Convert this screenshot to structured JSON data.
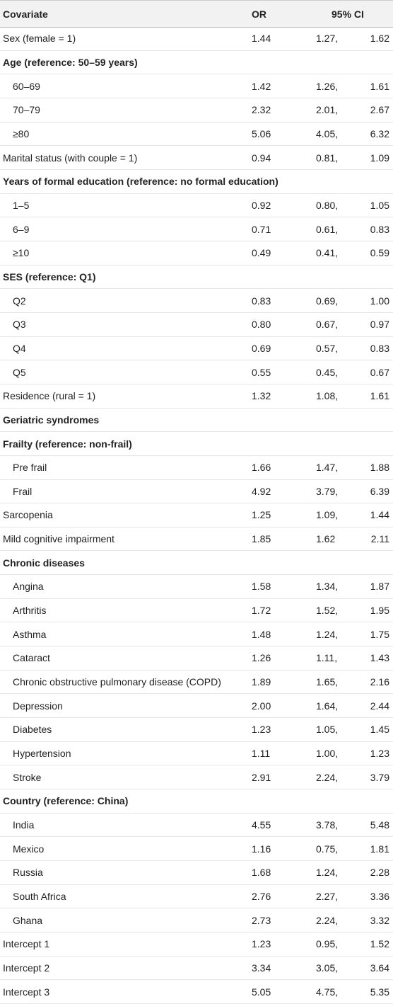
{
  "table": {
    "header": [
      "Covariate",
      "OR",
      "95% CI"
    ],
    "rows": [
      {
        "label": "Sex (female = 1)",
        "or": "1.44",
        "ci": [
          "1.27,",
          "1.62"
        ]
      },
      {
        "label": "Age (reference: 50–59 years)",
        "items": [
          {
            "label": "60–69",
            "or": "1.42",
            "ci": [
              "1.26,",
              "1.61"
            ]
          },
          {
            "label": "70–79",
            "or": "2.32",
            "ci": [
              "2.01,",
              "2.67"
            ]
          },
          {
            "label": "≥80",
            "or": "5.06",
            "ci": [
              "4.05,",
              "6.32"
            ]
          }
        ]
      },
      {
        "label": "Marital status (with couple = 1)",
        "or": "0.94",
        "ci": [
          "0.81,",
          "1.09"
        ]
      },
      {
        "label": "Years of formal education (reference: no formal education)",
        "items": [
          {
            "label": "1–5",
            "or": "0.92",
            "ci": [
              "0.80,",
              "1.05"
            ]
          },
          {
            "label": "6–9",
            "or": "0.71",
            "ci": [
              "0.61,",
              "0.83"
            ]
          },
          {
            "label": "≥10",
            "or": "0.49",
            "ci": [
              "0.41,",
              "0.59"
            ]
          }
        ]
      },
      {
        "label": "SES (reference: Q1)",
        "items": [
          {
            "label": "Q2",
            "or": "0.83",
            "ci": [
              "0.69,",
              "1.00"
            ]
          },
          {
            "label": "Q3",
            "or": "0.80",
            "ci": [
              "0.67,",
              "0.97"
            ]
          },
          {
            "label": "Q4",
            "or": "0.69",
            "ci": [
              "0.57,",
              "0.83"
            ]
          },
          {
            "label": "Q5",
            "or": "0.55",
            "ci": [
              "0.45,",
              "0.67"
            ]
          }
        ]
      },
      {
        "label": "Residence (rural = 1)",
        "or": "1.32",
        "ci": [
          "1.08,",
          "1.61"
        ]
      },
      {
        "label": "Geriatric syndromes"
      },
      {
        "label": "Frailty (reference: non-frail)",
        "items": [
          {
            "label": "Pre frail",
            "or": "1.66",
            "ci": [
              "1.47,",
              "1.88"
            ]
          },
          {
            "label": "Frail",
            "or": "4.92",
            "ci": [
              "3.79,",
              "6.39"
            ]
          }
        ]
      },
      {
        "label": "Sarcopenia",
        "or": "1.25",
        "ci": [
          "1.09,",
          "1.44"
        ]
      },
      {
        "label": "Mild cognitive impairment",
        "or": "1.85",
        "ci": [
          "1.62",
          "2.11"
        ]
      },
      {
        "label": "Chronic diseases",
        "items": [
          {
            "label": "Angina",
            "or": "1.58",
            "ci": [
              "1.34,",
              "1.87"
            ]
          },
          {
            "label": "Arthritis",
            "or": "1.72",
            "ci": [
              "1.52,",
              "1.95"
            ]
          },
          {
            "label": "Asthma",
            "or": "1.48",
            "ci": [
              "1.24,",
              "1.75"
            ]
          },
          {
            "label": "Cataract",
            "or": "1.26",
            "ci": [
              "1.11,",
              "1.43"
            ]
          },
          {
            "label": "Chronic obstructive pulmonary disease (COPD)",
            "or": "1.89",
            "ci": [
              "1.65,",
              "2.16"
            ]
          },
          {
            "label": "Depression",
            "or": "2.00",
            "ci": [
              "1.64,",
              "2.44"
            ]
          },
          {
            "label": "Diabetes",
            "or": "1.23",
            "ci": [
              "1.05,",
              "1.45"
            ]
          },
          {
            "label": "Hypertension",
            "or": "1.11",
            "ci": [
              "1.00,",
              "1.23"
            ]
          },
          {
            "label": "Stroke",
            "or": "2.91",
            "ci": [
              "2.24,",
              "3.79"
            ]
          }
        ]
      },
      {
        "label": "Country (reference: China)",
        "items": [
          {
            "label": "India",
            "or": "4.55",
            "ci": [
              "3.78,",
              "5.48"
            ]
          },
          {
            "label": "Mexico",
            "or": "1.16",
            "ci": [
              "0.75,",
              "1.81"
            ]
          },
          {
            "label": "Russia",
            "or": "1.68",
            "ci": [
              "1.24,",
              "2.28"
            ]
          },
          {
            "label": "South Africa",
            "or": "2.76",
            "ci": [
              "2.27,",
              "3.36"
            ]
          },
          {
            "label": "Ghana",
            "or": "2.73",
            "ci": [
              "2.24,",
              "3.32"
            ]
          }
        ]
      },
      {
        "label": "Intercept 1",
        "or": "1.23",
        "ci": [
          "0.95,",
          "1.52"
        ]
      },
      {
        "label": "Intercept 2",
        "or": "3.34",
        "ci": [
          "3.05,",
          "3.64"
        ]
      },
      {
        "label": "Intercept 3",
        "or": "5.05",
        "ci": [
          "4.75,",
          "5.35"
        ]
      }
    ]
  }
}
